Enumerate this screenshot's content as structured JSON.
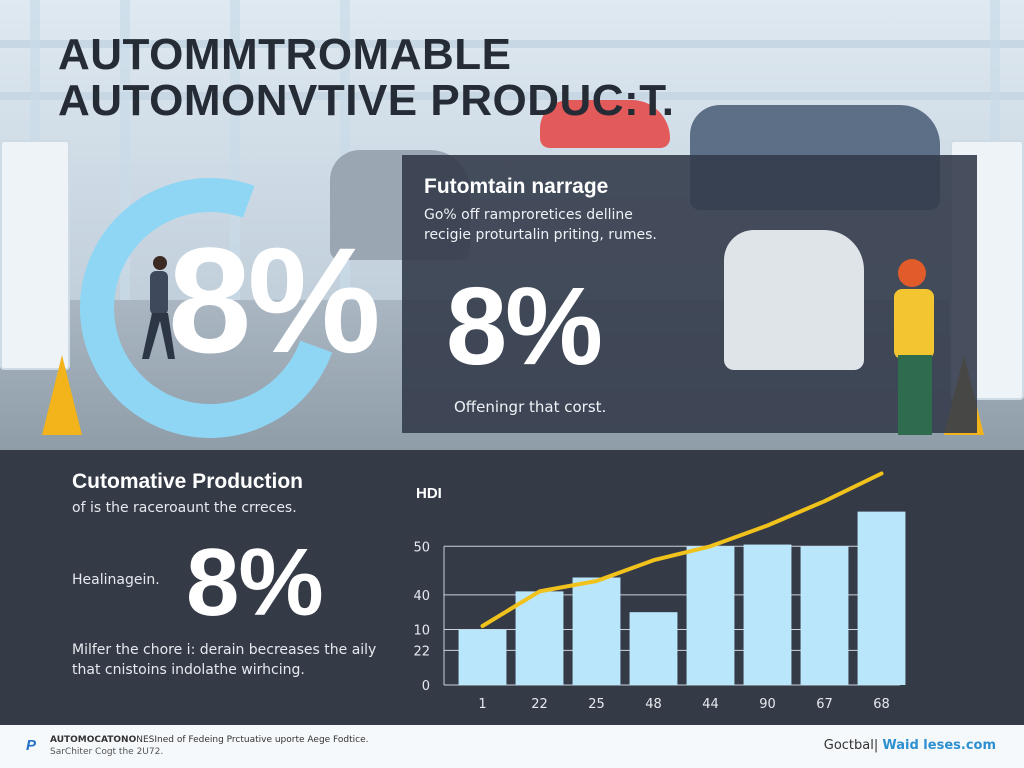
{
  "header": {
    "title_line1": "Autommtromable",
    "title_line2": "Automonvtive Produc:t."
  },
  "hero": {
    "big_stat": "8%"
  },
  "panel": {
    "heading": "Futomtain narrage",
    "paragraph": "Go% off ramproretices delline recigie proturtalin priting, rumes.",
    "big_stat": "8%",
    "caption": "Offeningr that corst."
  },
  "bottom": {
    "heading": "Cutomative Production",
    "subtitle": "of is the raceroaunt the crreces.",
    "label": "Healinagein.",
    "big_stat": "8%",
    "note": "Milfer the chore i: derain becreases the aily that cnistoins indolathe wirhcing."
  },
  "chart_data": {
    "type": "bar",
    "title": "HDI",
    "xlabel": "",
    "ylabel": "",
    "categories": [
      "1",
      "22",
      "25",
      "48",
      "44",
      "90",
      "67",
      "68"
    ],
    "y_tick_labels": [
      "0",
      "22",
      "10",
      "40",
      "50"
    ],
    "series": [
      {
        "name": "bars",
        "type": "bar",
        "values": [
          16,
          27,
          31,
          21,
          40,
          40.5,
          40,
          50
        ]
      },
      {
        "name": "trend",
        "type": "line",
        "color": "#f1c21b",
        "values": [
          17,
          27,
          30,
          36,
          40,
          46,
          53,
          61
        ]
      }
    ],
    "ylim": [
      0,
      62
    ],
    "grid": true,
    "bar_color": "#b9e6fa"
  },
  "footer": {
    "left_bold": "AUTOMOCATONO",
    "left_line1": "NESIned of Fedeing Prctuative uporte Aege Fodtice.",
    "left_line2": "SarChiter Cogt the 2U72.",
    "right_plain": "Goctbal|",
    "right_link": "Waid leses.com"
  },
  "colors": {
    "accent_blue": "#8fd6f5",
    "dark_panel": "#343a46",
    "trend_yellow": "#f1c21b"
  }
}
